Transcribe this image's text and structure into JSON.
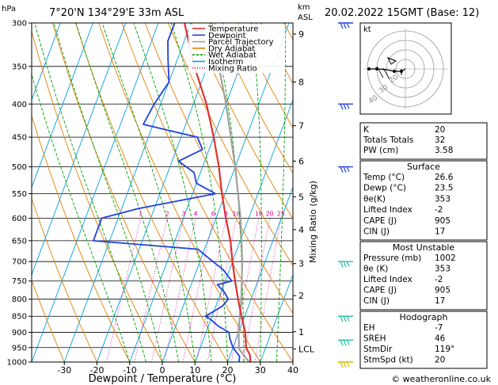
{
  "header": {
    "location": "7°20'N  134°29'E  33m  ASL",
    "datetime": "20.02.2022  15GMT  (Base: 12)",
    "left_unit": "hPa",
    "right_unit_km": "km",
    "right_unit_asl": "ASL"
  },
  "footer": {
    "copyright": "© weatheronline.co.uk"
  },
  "hodograph": {
    "unit_label": "kt",
    "ring_labels": [
      "40",
      "30",
      "20"
    ]
  },
  "indices_general": [
    {
      "label": "K",
      "value": "20"
    },
    {
      "label": "Totals Totals",
      "value": "32"
    },
    {
      "label": "PW (cm)",
      "value": "3.58"
    }
  ],
  "surface": {
    "title": "Surface",
    "rows": [
      {
        "label": "Temp (°C)",
        "value": "26.6"
      },
      {
        "label": "Dewp (°C)",
        "value": "23.5"
      },
      {
        "label": "θe(K)",
        "value": "353"
      },
      {
        "label": "Lifted Index",
        "value": "-2"
      },
      {
        "label": "CAPE (J)",
        "value": "905"
      },
      {
        "label": "CIN (J)",
        "value": "17"
      }
    ]
  },
  "most_unstable": {
    "title": "Most Unstable",
    "rows": [
      {
        "label": "Pressure (mb)",
        "value": "1002"
      },
      {
        "label": "θe (K)",
        "value": "353"
      },
      {
        "label": "Lifted Index",
        "value": "-2"
      },
      {
        "label": "CAPE (J)",
        "value": "905"
      },
      {
        "label": "CIN (J)",
        "value": "17"
      }
    ]
  },
  "hodograph_box": {
    "title": "Hodograph",
    "rows": [
      {
        "label": "EH",
        "value": "-7"
      },
      {
        "label": "SREH",
        "value": "46"
      },
      {
        "label": "StmDir",
        "value": "119°"
      },
      {
        "label": "StmSpd (kt)",
        "value": "20"
      }
    ]
  },
  "colors": {
    "temperature": "#e03030",
    "dewpoint": "#2040e0",
    "parcel": "#a0a0a0",
    "dry_adiabat": "#e08000",
    "wet_adiabat": "#00a000",
    "isotherm": "#00a0e0",
    "mixing_ratio": "#e000a0"
  },
  "chart_data": {
    "type": "line",
    "xlabel": "Dewpoint / Temperature (°C)",
    "ylabel_right": "Mixing Ratio (g/kg)",
    "xlim": [
      -40,
      40
    ],
    "ylim": [
      1000,
      300
    ],
    "pressure_ticks": [
      300,
      350,
      400,
      450,
      500,
      550,
      600,
      650,
      700,
      750,
      800,
      850,
      900,
      950,
      1000
    ],
    "x_ticks": [
      -30,
      -20,
      -10,
      0,
      10,
      20,
      30,
      40
    ],
    "altitude_km_ticks": [
      {
        "label": "9",
        "p": 312
      },
      {
        "label": "8",
        "p": 370
      },
      {
        "label": "7",
        "p": 432
      },
      {
        "label": "6",
        "p": 490
      },
      {
        "label": "5",
        "p": 556
      },
      {
        "label": "4",
        "p": 625
      },
      {
        "label": "3",
        "p": 705
      },
      {
        "label": "2",
        "p": 790
      },
      {
        "label": "1",
        "p": 898
      },
      {
        "label": "LCL",
        "p": 955
      }
    ],
    "mixing_ratio_labels": [
      "1",
      "2",
      "3",
      "4",
      "6",
      "8",
      "10",
      "16",
      "20",
      "25"
    ],
    "legend": [
      "Temperature",
      "Dewpoint",
      "Parcel Trajectory",
      "Dry Adiabat",
      "Wet Adiabat",
      "Isotherm",
      "Mixing Ratio"
    ],
    "legend_position": "top-left",
    "series": [
      {
        "name": "Temperature",
        "points": [
          [
            1000,
            27
          ],
          [
            975,
            26
          ],
          [
            950,
            24
          ],
          [
            900,
            22
          ],
          [
            850,
            19
          ],
          [
            800,
            16
          ],
          [
            750,
            13
          ],
          [
            700,
            10
          ],
          [
            650,
            7
          ],
          [
            600,
            3
          ],
          [
            550,
            -1
          ],
          [
            500,
            -5
          ],
          [
            450,
            -10
          ],
          [
            400,
            -16
          ],
          [
            350,
            -24
          ],
          [
            300,
            -32
          ]
        ]
      },
      {
        "name": "Dewpoint",
        "points": [
          [
            1000,
            23.5
          ],
          [
            980,
            23
          ],
          [
            950,
            20
          ],
          [
            920,
            18
          ],
          [
            900,
            17
          ],
          [
            880,
            13
          ],
          [
            860,
            10
          ],
          [
            850,
            8
          ],
          [
            820,
            12
          ],
          [
            800,
            13
          ],
          [
            780,
            11
          ],
          [
            760,
            8
          ],
          [
            750,
            12
          ],
          [
            720,
            8
          ],
          [
            700,
            4
          ],
          [
            670,
            -2
          ],
          [
            650,
            -35
          ],
          [
            620,
            -35
          ],
          [
            600,
            -35
          ],
          [
            580,
            -25
          ],
          [
            550,
            -3
          ],
          [
            530,
            -10
          ],
          [
            510,
            -12
          ],
          [
            500,
            -15
          ],
          [
            490,
            -18
          ],
          [
            470,
            -12
          ],
          [
            450,
            -15
          ],
          [
            430,
            -33
          ],
          [
            400,
            -32
          ],
          [
            370,
            -30
          ],
          [
            340,
            -33
          ],
          [
            320,
            -35
          ],
          [
            300,
            -35
          ]
        ]
      },
      {
        "name": "Parcel Trajectory",
        "points": [
          [
            1000,
            26.6
          ],
          [
            955,
            22
          ],
          [
            900,
            20
          ],
          [
            850,
            18.5
          ],
          [
            800,
            17
          ],
          [
            700,
            13
          ],
          [
            600,
            7.5
          ],
          [
            500,
            0
          ],
          [
            400,
            -10
          ],
          [
            300,
            -24
          ]
        ]
      }
    ]
  }
}
